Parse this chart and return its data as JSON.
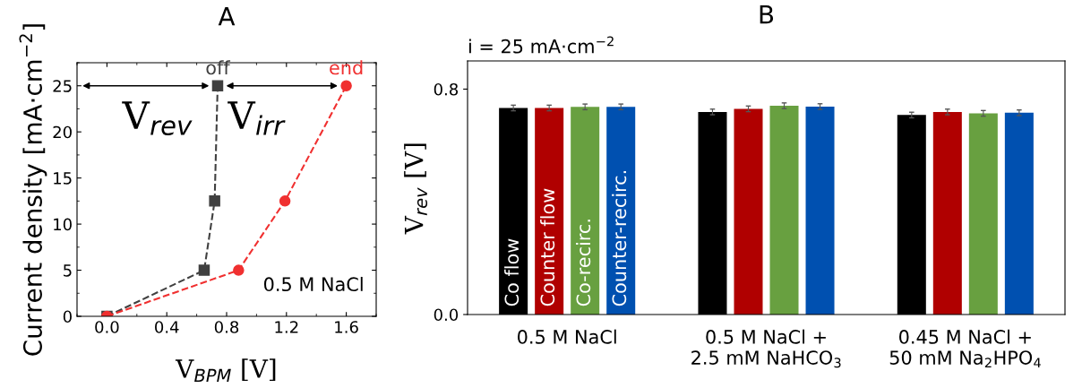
{
  "chart_data": [
    {
      "type": "line",
      "title": "A",
      "xlabel": "V$_{BPM}$ [V]",
      "ylabel": "Current density [mA·cm$^{−2}$]",
      "xlim": [
        -0.2,
        1.8
      ],
      "ylim": [
        0,
        27.5
      ],
      "xticks": [
        {
          "value": 0,
          "label": "0.0"
        },
        0.4,
        0.8,
        1.2,
        1.6
      ],
      "yticks": [
        0,
        5,
        10,
        15,
        20,
        25
      ],
      "line_style": "dashed",
      "grid": false,
      "legend": false,
      "series": [
        {
          "color": "#404040",
          "marker": "square",
          "x": [
            0,
            0.65,
            0.72,
            0.74
          ],
          "values": [
            0,
            5,
            12.5,
            25
          ]
        },
        {
          "color": "#f03030",
          "marker": "circle",
          "x": [
            0,
            0.88,
            1.19,
            1.6
          ],
          "values": [
            0,
            5,
            12.5,
            25
          ]
        }
      ],
      "annotations": [
        {
          "text": "off",
          "x": 0.74,
          "y": 25
        },
        {
          "text": "end",
          "x": 1.6,
          "y": 25
        },
        "V$_{rev}$",
        "V$_{irr}$",
        "0.5 M NaCl"
      ]
    },
    {
      "type": "bar",
      "title": "B",
      "subtitle": "i = 25 mA·cm$^{−2}$",
      "ylabel": "V$_{rev}$ [V]",
      "ylim": [
        0,
        0.9
      ],
      "yticks": [
        {
          "value": 0,
          "label": "0.0"
        },
        0.8
      ],
      "grid": false,
      "legend": false,
      "categories": [
        "0.5 M NaCl",
        "0.5 M NaCl +\n2.5 mM NaHCO$_{3}$",
        "0.45 M NaCl +\n50 mM Na$_{2}$HPO$_{4}$"
      ],
      "series": [
        {
          "name": "Co flow",
          "color": "#000000",
          "values": [
            0.733,
            0.719,
            0.708
          ],
          "errors": [
            0.01,
            0.01,
            0.01
          ]
        },
        {
          "name": "Counter flow",
          "color": "#b00000",
          "values": [
            0.733,
            0.73,
            0.719
          ],
          "errors": [
            0.01,
            0.01,
            0.01
          ]
        },
        {
          "name": "Co-recirc.",
          "color": "#68a040",
          "values": [
            0.737,
            0.741,
            0.714
          ],
          "errors": [
            0.01,
            0.01,
            0.01
          ]
        },
        {
          "name": "Counter-recirc.",
          "color": "#0050b0",
          "values": [
            0.737,
            0.738,
            0.716
          ],
          "errors": [
            0.01,
            0.01,
            0.01
          ]
        }
      ]
    }
  ]
}
